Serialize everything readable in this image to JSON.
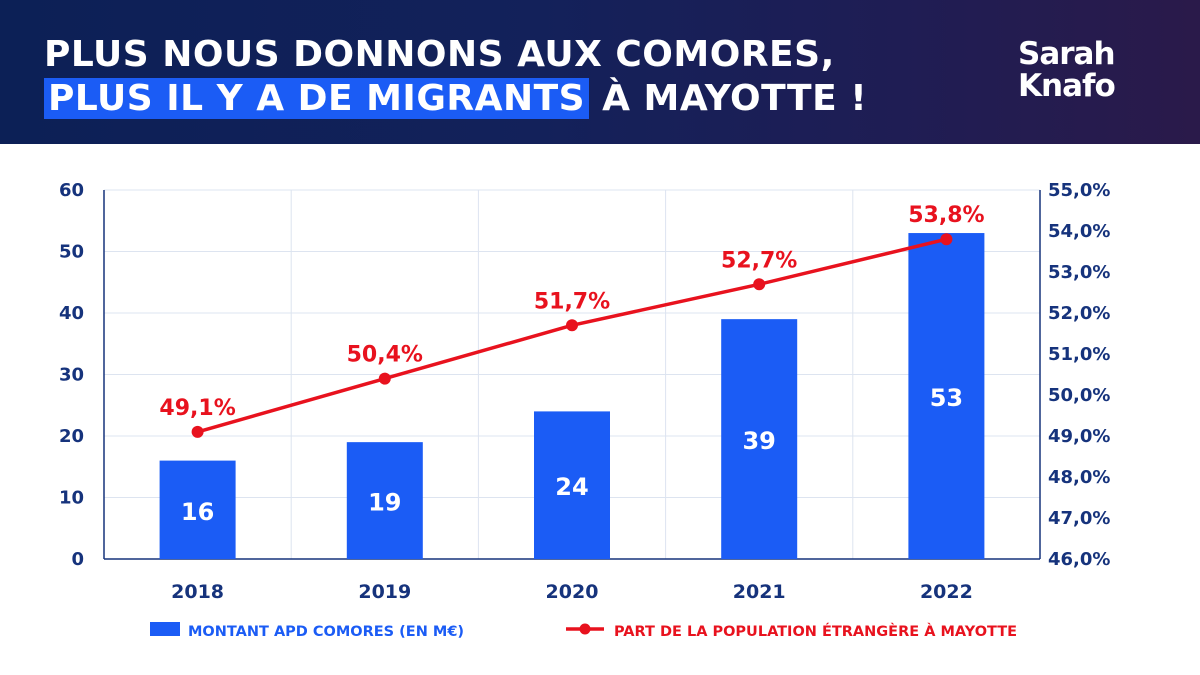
{
  "header": {
    "title_line1": "PLUS NOUS DONNONS AUX COMORES,",
    "title_line2_highlight": "PLUS IL Y A DE MIGRANTS",
    "title_line2_rest": " À MAYOTTE !",
    "logo_line1": "Sarah",
    "logo_line2": "Knafo"
  },
  "colors": {
    "bar": "#1b5cf5",
    "line": "#e8121e",
    "axis_text": "#16337c",
    "grid": "#dde4f0"
  },
  "chart_data": {
    "type": "bar",
    "categories": [
      "2018",
      "2019",
      "2020",
      "2021",
      "2022"
    ],
    "series": [
      {
        "name": "MONTANT APD COMORES (EN M€)",
        "type": "bar",
        "axis": "left",
        "values": [
          16,
          19,
          24,
          39,
          53
        ],
        "labels": [
          "16",
          "19",
          "24",
          "39",
          "53"
        ]
      },
      {
        "name": "PART DE LA POPULATION ÉTRANGÈRE À MAYOTTE",
        "type": "line",
        "axis": "right",
        "values": [
          49.1,
          50.4,
          51.7,
          52.7,
          53.8
        ],
        "labels": [
          "49,1%",
          "50,4%",
          "51,7%",
          "52,7%",
          "53,8%"
        ]
      }
    ],
    "y_left": {
      "ylim": [
        0,
        60
      ],
      "ticks": [
        0,
        10,
        20,
        30,
        40,
        50,
        60
      ],
      "tick_labels": [
        "0",
        "10",
        "20",
        "30",
        "40",
        "50",
        "60"
      ]
    },
    "y_right": {
      "ylim": [
        46,
        55
      ],
      "ticks": [
        46,
        47,
        48,
        49,
        50,
        51,
        52,
        53,
        54,
        55
      ],
      "tick_labels": [
        "46,0%",
        "47,0%",
        "48,0%",
        "49,0%",
        "50,0%",
        "51,0%",
        "52,0%",
        "53,0%",
        "54,0%",
        "55,0%"
      ]
    },
    "grid": true,
    "legend_position": "bottom"
  }
}
